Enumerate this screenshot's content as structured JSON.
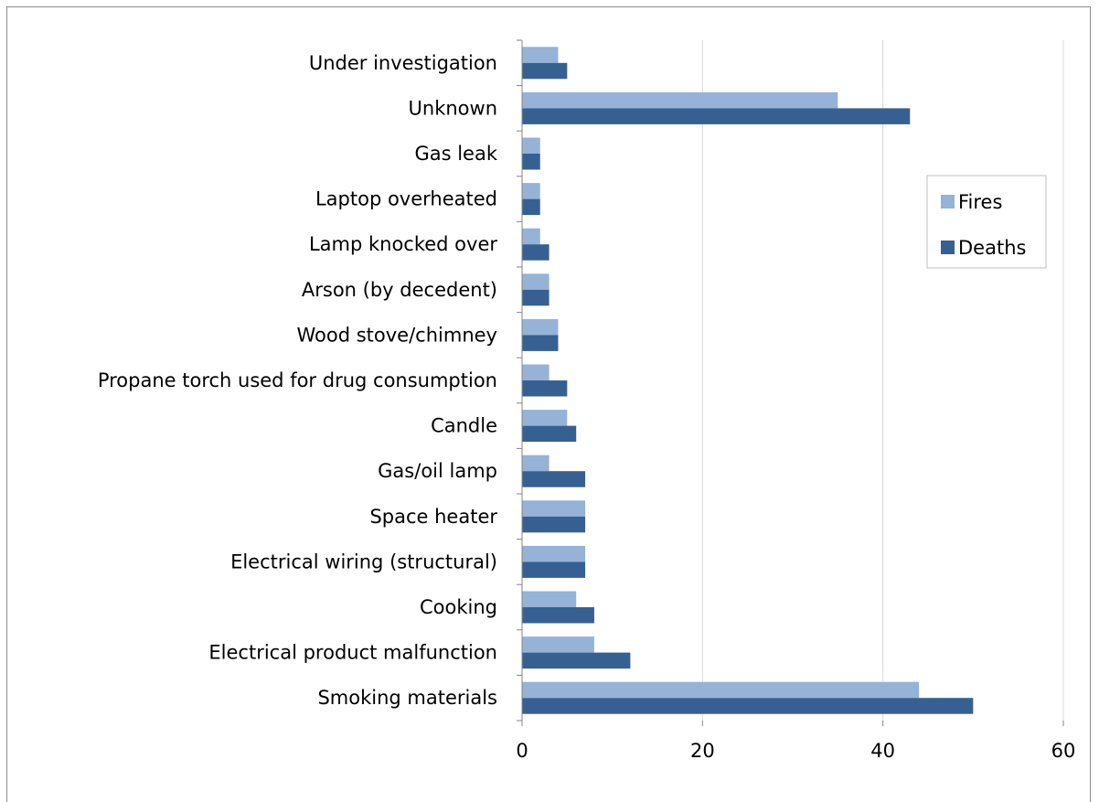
{
  "chart_data": {
    "type": "bar",
    "orientation": "horizontal",
    "title": "",
    "xlabel": "",
    "ylabel": "",
    "categories": [
      "Under investigation",
      "Unknown",
      "Gas leak",
      "Laptop overheated",
      "Lamp knocked over",
      "Arson (by decedent)",
      "Wood stove/chimney",
      "Propane torch used for drug consumption",
      "Candle",
      "Gas/oil lamp",
      "Space heater",
      "Electrical wiring (structural)",
      "Cooking",
      "Electrical product malfunction",
      "Smoking materials"
    ],
    "series": [
      {
        "name": "Fires",
        "color": "#95b3d7",
        "values": [
          4,
          35,
          2,
          2,
          2,
          3,
          4,
          3,
          5,
          3,
          7,
          7,
          6,
          8,
          44
        ]
      },
      {
        "name": "Deaths",
        "color": "#376092",
        "values": [
          5,
          43,
          2,
          2,
          3,
          3,
          4,
          5,
          6,
          7,
          7,
          7,
          8,
          12,
          50
        ]
      }
    ],
    "xlim": [
      0,
      60
    ],
    "xticks": [
      "0",
      "20",
      "40",
      "60"
    ],
    "grid": "vertical",
    "legend": "right"
  }
}
